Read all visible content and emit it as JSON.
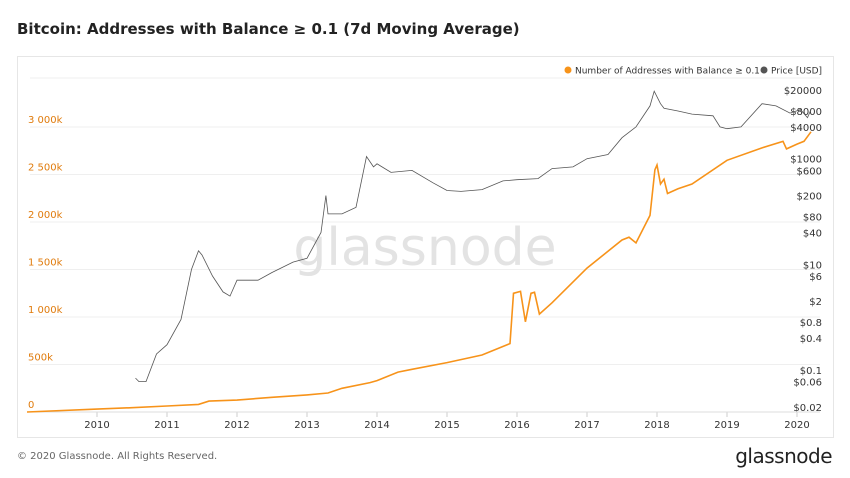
{
  "title": "Bitcoin: Addresses with Balance ≥ 0.1 (7d Moving Average)",
  "footer": "© 2020 Glassnode. All Rights Reserved.",
  "logo": "glassnode",
  "watermark": "glassnode",
  "chart_data": {
    "type": "line",
    "title": "Bitcoin: Addresses with Balance ≥ 0.1 (7d Moving Average)",
    "legend_placement": "top-right",
    "grid": true,
    "x_ticks": [
      "2010",
      "2011",
      "2012",
      "2013",
      "2014",
      "2015",
      "2016",
      "2017",
      "2018",
      "2019",
      "2020"
    ],
    "xlim": [
      2009.0,
      2020.3
    ],
    "y_left": {
      "ticks": [
        "0",
        "500k",
        "1 000k",
        "1 500k",
        "2 000k",
        "2 500k",
        "3 000k"
      ],
      "tick_values": [
        0,
        500,
        1000,
        1500,
        2000,
        2500,
        3000
      ],
      "unit": "thousands",
      "color": "#f7931a"
    },
    "y_right": {
      "scale": "log",
      "ticks": [
        "$20000",
        "$8000",
        "$4000",
        "$1000",
        "$600",
        "$200",
        "$80",
        "$40",
        "$10",
        "$6",
        "$2",
        "$0.8",
        "$0.4",
        "$0.1",
        "$0.06",
        "$0.02"
      ],
      "tick_values": [
        20000,
        8000,
        4000,
        1000,
        600,
        200,
        80,
        40,
        10,
        6,
        2,
        0.8,
        0.4,
        0.1,
        0.06,
        0.02
      ]
    },
    "series": [
      {
        "name": "Number of Addresses with Balance ≥ 0.1",
        "color": "#f7931a",
        "axis": "left",
        "x": [
          2009.0,
          2010.0,
          2010.5,
          2011.0,
          2011.45,
          2011.6,
          2012.0,
          2012.5,
          2013.0,
          2013.3,
          2013.5,
          2013.9,
          2014.0,
          2014.3,
          2014.5,
          2015.0,
          2015.5,
          2015.9,
          2015.95,
          2016.05,
          2016.12,
          2016.2,
          2016.25,
          2016.32,
          2016.5,
          2017.0,
          2017.5,
          2017.6,
          2017.7,
          2017.9,
          2017.97,
          2018.0,
          2018.05,
          2018.1,
          2018.15,
          2018.3,
          2018.5,
          2019.0,
          2019.5,
          2019.8,
          2019.85,
          2020.0,
          2020.1,
          2020.2
        ],
        "values": [
          0,
          30,
          45,
          63,
          80,
          115,
          125,
          155,
          180,
          200,
          250,
          310,
          330,
          420,
          450,
          520,
          600,
          720,
          1250,
          1270,
          950,
          1250,
          1260,
          1030,
          1150,
          1515,
          1810,
          1840,
          1780,
          2070,
          2550,
          2600,
          2400,
          2450,
          2300,
          2350,
          2400,
          2650,
          2780,
          2850,
          2770,
          2820,
          2850,
          2950
        ]
      },
      {
        "name": "Price [USD]",
        "color": "#555555",
        "axis": "right",
        "x": [
          2010.55,
          2010.6,
          2010.7,
          2010.85,
          2011.0,
          2011.2,
          2011.35,
          2011.45,
          2011.5,
          2011.65,
          2011.8,
          2011.9,
          2012.0,
          2012.3,
          2012.5,
          2012.8,
          2013.0,
          2013.2,
          2013.27,
          2013.3,
          2013.5,
          2013.7,
          2013.85,
          2013.95,
          2014.0,
          2014.2,
          2014.5,
          2014.8,
          2015.0,
          2015.2,
          2015.5,
          2015.8,
          2016.0,
          2016.3,
          2016.5,
          2016.8,
          2017.0,
          2017.3,
          2017.5,
          2017.7,
          2017.9,
          2017.96,
          2018.05,
          2018.1,
          2018.3,
          2018.5,
          2018.8,
          2018.9,
          2019.0,
          2019.2,
          2019.5,
          2019.7,
          2019.9,
          2020.05,
          2020.15,
          2020.2
        ],
        "values": [
          0.07,
          0.06,
          0.06,
          0.2,
          0.3,
          0.9,
          8,
          18,
          15,
          6,
          3,
          2.5,
          5,
          5,
          7,
          11,
          13,
          40,
          200,
          90,
          90,
          120,
          1100,
          700,
          800,
          550,
          600,
          350,
          250,
          240,
          260,
          380,
          400,
          420,
          650,
          700,
          1000,
          1200,
          2500,
          4000,
          10000,
          19000,
          11000,
          9000,
          8000,
          7000,
          6500,
          4000,
          3700,
          4000,
          11000,
          10000,
          7300,
          8500,
          6000,
          8500
        ]
      }
    ]
  }
}
